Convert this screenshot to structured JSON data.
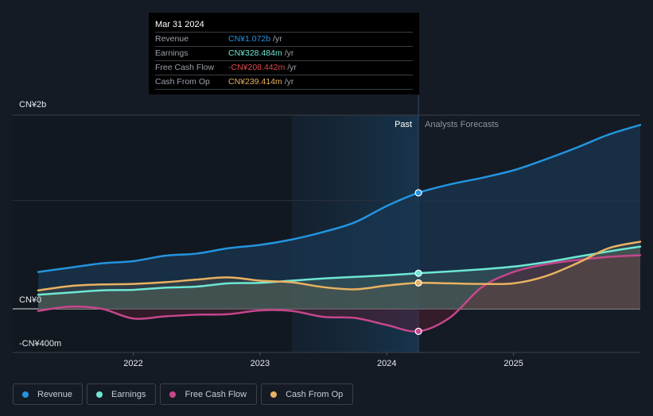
{
  "tooltip": {
    "date": "Mar 31 2024",
    "rows": [
      {
        "label": "Revenue",
        "value": "CN¥1.072b",
        "unit": "/yr",
        "color": "#2394df"
      },
      {
        "label": "Earnings",
        "value": "CN¥328.484m",
        "unit": "/yr",
        "color": "#6ee7d4"
      },
      {
        "label": "Free Cash Flow",
        "value": "-CN¥208.442m",
        "unit": "/yr",
        "color": "#e0474c"
      },
      {
        "label": "Cash From Op",
        "value": "CN¥239.414m",
        "unit": "/yr",
        "color": "#e9b261"
      }
    ]
  },
  "legend": [
    {
      "label": "Revenue",
      "color": "#2394df"
    },
    {
      "label": "Earnings",
      "color": "#6ee7d4"
    },
    {
      "label": "Free Cash Flow",
      "color": "#c5478c"
    },
    {
      "label": "Cash From Op",
      "color": "#e9b261"
    }
  ],
  "chart_data": {
    "type": "line",
    "title": "",
    "xlabel": "",
    "ylabel": "",
    "units": "CN¥ millions",
    "x_ticks": [
      "2022",
      "2023",
      "2024",
      "2025"
    ],
    "y_labels": [
      {
        "label": "CN¥2b",
        "value": 1800
      },
      {
        "label": "CN¥0",
        "value": 0
      },
      {
        "label": "-CN¥400m",
        "value": -400
      }
    ],
    "xlim": [
      2021.25,
      2026.0
    ],
    "ylim": [
      -404,
      1790
    ],
    "past_label": "Past",
    "forecast_label": "Analysts Forecasts",
    "past_end": 2024.25,
    "past_shade_start": 2023.25,
    "highlight_x": 2024.25,
    "grid": true,
    "legend_position": "bottom-left",
    "series": [
      {
        "name": "Revenue",
        "color": "#2394df",
        "x": [
          2021.25,
          2021.5,
          2021.75,
          2022.0,
          2022.25,
          2022.5,
          2022.75,
          2023.0,
          2023.25,
          2023.5,
          2023.75,
          2024.0,
          2024.25,
          2024.5,
          2024.75,
          2025.0,
          2025.25,
          2025.5,
          2025.75,
          2026.0
        ],
        "y": [
          340,
          380,
          420,
          440,
          490,
          510,
          560,
          590,
          640,
          710,
          800,
          950,
          1072,
          1150,
          1210,
          1280,
          1380,
          1490,
          1610,
          1700
        ]
      },
      {
        "name": "Earnings",
        "color": "#6ee7d4",
        "x": [
          2021.25,
          2021.5,
          2021.75,
          2022.0,
          2022.25,
          2022.5,
          2022.75,
          2023.0,
          2023.25,
          2023.5,
          2023.75,
          2024.0,
          2024.25,
          2024.5,
          2024.75,
          2025.0,
          2025.25,
          2025.5,
          2025.75,
          2026.0
        ],
        "y": [
          130,
          150,
          170,
          175,
          195,
          205,
          235,
          240,
          260,
          280,
          295,
          310,
          328.5,
          345,
          365,
          390,
          430,
          480,
          530,
          575
        ]
      },
      {
        "name": "Free Cash Flow",
        "color": "#c5478c",
        "x": [
          2021.25,
          2021.5,
          2021.75,
          2022.0,
          2022.25,
          2022.5,
          2022.75,
          2023.0,
          2023.25,
          2023.5,
          2023.75,
          2024.0,
          2024.25,
          2024.5,
          2024.75,
          2025.0,
          2025.25,
          2025.5,
          2025.75,
          2026.0
        ],
        "y": [
          -20,
          20,
          0,
          -90,
          -70,
          -55,
          -50,
          -15,
          -20,
          -75,
          -85,
          -150,
          -208.4,
          -80,
          200,
          340,
          410,
          450,
          480,
          495
        ]
      },
      {
        "name": "Cash From Op",
        "color": "#e9b261",
        "x": [
          2021.25,
          2021.5,
          2021.75,
          2022.0,
          2022.25,
          2022.5,
          2022.75,
          2023.0,
          2023.25,
          2023.5,
          2023.75,
          2024.0,
          2024.25,
          2024.5,
          2024.75,
          2025.0,
          2025.25,
          2025.5,
          2025.75,
          2026.0
        ],
        "y": [
          170,
          210,
          225,
          230,
          245,
          270,
          290,
          260,
          245,
          200,
          180,
          215,
          239.4,
          235,
          230,
          235,
          300,
          420,
          560,
          620
        ]
      }
    ]
  }
}
